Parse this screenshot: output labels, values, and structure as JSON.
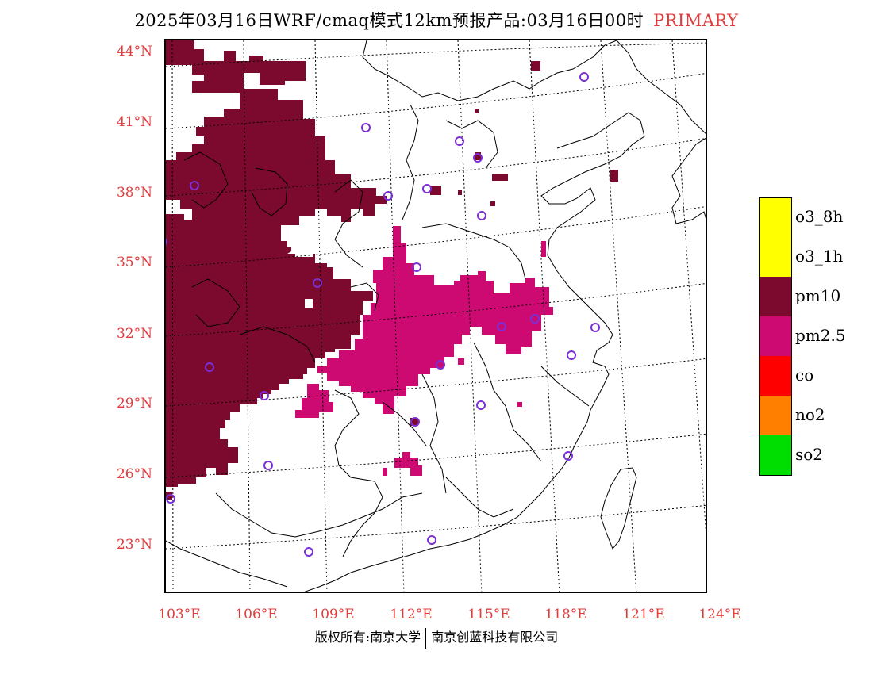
{
  "title": {
    "main": "2025年03月16日WRF/cmaq模式12km预报产品:03月16日00时",
    "tag": "PRIMARY"
  },
  "lat_labels": [
    "44°N",
    "41°N",
    "38°N",
    "35°N",
    "32°N",
    "29°N",
    "26°N",
    "23°N"
  ],
  "lon_labels": [
    "103°E",
    "106°E",
    "109°E",
    "112°E",
    "115°E",
    "118°E",
    "121°E",
    "124°E"
  ],
  "legend": [
    {
      "label": "o3_8h",
      "color": "#ffff00"
    },
    {
      "label": "o3_1h",
      "color": "#ffff00"
    },
    {
      "label": "pm10",
      "color": "#7b0a2e"
    },
    {
      "label": "pm2.5",
      "color": "#cc0a72"
    },
    {
      "label": "co",
      "color": "#ff0000"
    },
    {
      "label": "no2",
      "color": "#ff7f00"
    },
    {
      "label": "so2",
      "color": "#00dd00"
    }
  ],
  "footer": {
    "left": "版权所有:南京大学",
    "right": "南京创蓝科技有限公司"
  },
  "colors": {
    "pm10": "#7b0a2e",
    "pm25": "#cc0a72",
    "station_marker": "#7b2fd6",
    "axis_label": "#e23b3b"
  }
}
